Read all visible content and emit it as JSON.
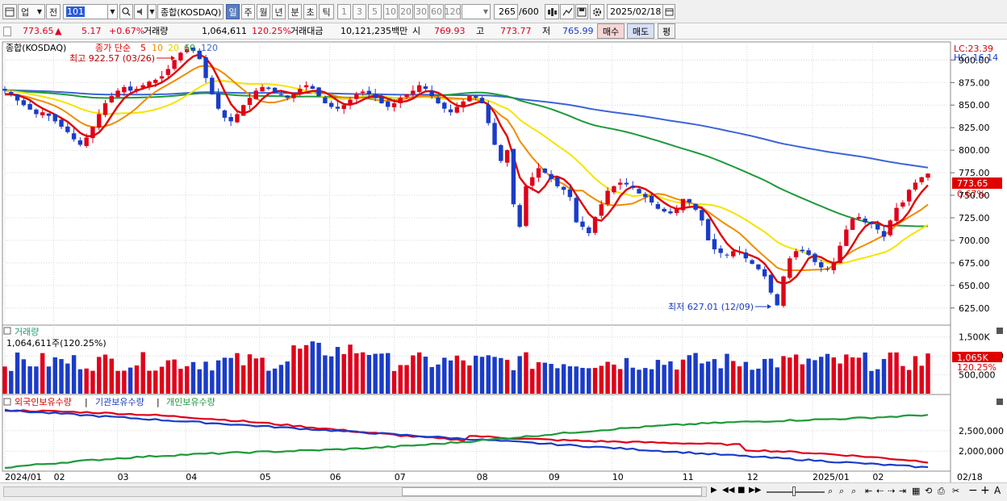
{
  "toolbar": {
    "market": "업",
    "prev_label": "전",
    "code": "101",
    "index_name": "종합(KOSDAQ)",
    "periods": [
      "일",
      "주",
      "월",
      "년",
      "분",
      "초",
      "틱"
    ],
    "active_period": "일",
    "minute_options": [
      "1",
      "3",
      "5",
      "10",
      "20",
      "30",
      "60",
      "120"
    ],
    "count": "265",
    "max_count": "/600",
    "date": "2025/02/18"
  },
  "quote": {
    "price": "773.65",
    "arrow": "▲",
    "change": "5.17",
    "change_pct": "+0.67%",
    "volume_label": "거래량",
    "volume": "1,064,611",
    "volume_pct": "120.25%",
    "amount_label": "거래대금",
    "amount": "10,121,235백만",
    "open_label": "시",
    "open": "769.93",
    "high_label": "고",
    "high": "773.77",
    "low_label": "저",
    "low": "765.99",
    "buy_label": "매수",
    "sell_label": "매도",
    "eval_label": "평"
  },
  "price_panel": {
    "title": "종합(KOSDAQ)",
    "ma_label": "종가 단순",
    "ma_periods": [
      "5",
      "10",
      "20",
      "60",
      "120"
    ],
    "high_note": "최고 922.57 (03/26)",
    "low_note": "최저 627.01 (12/09)",
    "lc": "LC:23.39",
    "hc": "HC:-16.14",
    "current_label": "773.65",
    "current_pct": "0.67%"
  },
  "volume_panel": {
    "title": "거래량",
    "value_note": "1,064,611주(120.25%)",
    "current_label": "1,065K",
    "current_pct": "120.25%"
  },
  "holding_panel": {
    "foreign_label": "외국인보유수량",
    "inst_label": "기관보유수량",
    "indiv_label": "개인보유수량"
  },
  "colors": {
    "up": "#e0001a",
    "down": "#1a3cc8",
    "ma5": "#e00000",
    "ma10": "#f08c00",
    "ma20": "#f5e400",
    "ma60": "#1e9a3a",
    "ma120": "#3c64d8"
  },
  "chart_data": [
    {
      "type": "candlestick",
      "title": "종합(KOSDAQ)",
      "y_ticks": [
        625,
        650,
        675,
        700,
        725,
        750,
        775,
        800,
        825,
        850,
        875,
        900
      ],
      "ylim": [
        606,
        920
      ],
      "x_labels": [
        "2024/01",
        "02",
        "03",
        "04",
        "05",
        "06",
        "07",
        "08",
        "09",
        "10",
        "11",
        "12",
        "2025/01",
        "02",
        "02/18"
      ],
      "series": [
        {
          "name": "5",
          "kind": "ma"
        },
        {
          "name": "10",
          "kind": "ma"
        },
        {
          "name": "20",
          "kind": "ma"
        },
        {
          "name": "60",
          "kind": "ma"
        },
        {
          "name": "120",
          "kind": "ma"
        }
      ],
      "closes": [
        866,
        862,
        855,
        850,
        845,
        840,
        842,
        838,
        832,
        826,
        820,
        812,
        806,
        814,
        826,
        840,
        852,
        860,
        866,
        870,
        866,
        868,
        872,
        876,
        878,
        882,
        890,
        900,
        908,
        912,
        910,
        901,
        880,
        862,
        846,
        836,
        832,
        840,
        850,
        858,
        866,
        870,
        868,
        864,
        861,
        858,
        862,
        868,
        872,
        868,
        860,
        852,
        848,
        846,
        850,
        856,
        862,
        865,
        862,
        858,
        852,
        848,
        852,
        858,
        862,
        866,
        872,
        868,
        860,
        852,
        846,
        842,
        848,
        854,
        860,
        858,
        852,
        830,
        806,
        788,
        800,
        740,
        715,
        760,
        770,
        780,
        775,
        768,
        760,
        756,
        748,
        720,
        715,
        708,
        726,
        740,
        755,
        760,
        764,
        762,
        758,
        752,
        748,
        742,
        735,
        732,
        730,
        735,
        746,
        742,
        734,
        722,
        700,
        690,
        686,
        684,
        688,
        688,
        680,
        674,
        668,
        660,
        642,
        628,
        660,
        680,
        688,
        688,
        684,
        676,
        670,
        668,
        676,
        694,
        712,
        724,
        726,
        720,
        718,
        712,
        704,
        722,
        736,
        742,
        756,
        764,
        770,
        774
      ],
      "last": 773.65
    },
    {
      "type": "bar",
      "title": "거래량",
      "y_ticks": [
        500000,
        1000000,
        1500000
      ],
      "last": 1064611,
      "last_pct": "120.25%"
    },
    {
      "type": "line",
      "title": "보유수량",
      "y_ticks": [
        2000000,
        2500000
      ],
      "series": [
        {
          "name": "외국인보유수량",
          "start": 3000000,
          "end": 1700000
        },
        {
          "name": "기관보유수량",
          "start": 3000000,
          "end": 1600000
        },
        {
          "name": "개인보유수량",
          "start": 1600000,
          "end": 2950000
        }
      ]
    }
  ]
}
